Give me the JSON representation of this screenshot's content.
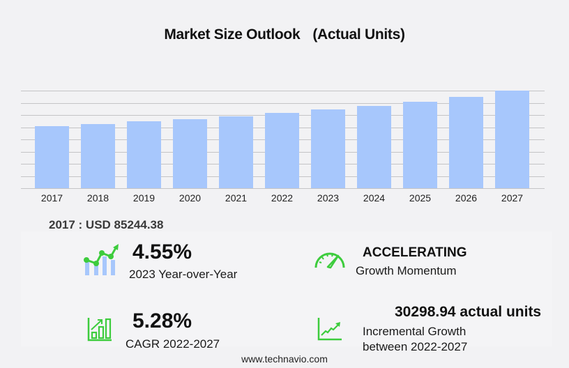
{
  "title": "Market Size Outlook",
  "title_unit": "(Actual Units)",
  "chart_data": {
    "type": "bar",
    "title": "Market Size Outlook (Actual Units)",
    "xlabel": "",
    "ylabel": "",
    "categories": [
      "2017",
      "2018",
      "2019",
      "2020",
      "2021",
      "2022",
      "2023",
      "2024",
      "2025",
      "2026",
      "2027"
    ],
    "values": [
      85244.38,
      88200,
      92100,
      95000,
      98800,
      103240,
      107937,
      112700,
      118400,
      125100,
      133539
    ],
    "bar_color": "#a7c7fc",
    "grid": true,
    "y_axis_labels_visible": false,
    "ylim": [
      0,
      134000
    ],
    "legend": "none"
  },
  "base_year_label": "2017 : USD  85244.38",
  "kpis": {
    "yoy": {
      "value": "4.55%",
      "label": "2023 Year-over-Year",
      "icon": "line-bar-growth-icon"
    },
    "momentum": {
      "value": "ACCELERATING",
      "label": "Growth Momentum",
      "icon": "speedometer-icon"
    },
    "cagr": {
      "value": "5.28%",
      "label": "CAGR 2022-2027",
      "icon": "bar-chart-arrow-icon"
    },
    "incremental": {
      "value": "30298.94 actual units",
      "label_line1": "Incremental Growth",
      "label_line2": "between 2022-2027",
      "icon": "trend-line-icon"
    }
  },
  "accent_color": "#3dcc3d",
  "footer": "www.technavio.com"
}
